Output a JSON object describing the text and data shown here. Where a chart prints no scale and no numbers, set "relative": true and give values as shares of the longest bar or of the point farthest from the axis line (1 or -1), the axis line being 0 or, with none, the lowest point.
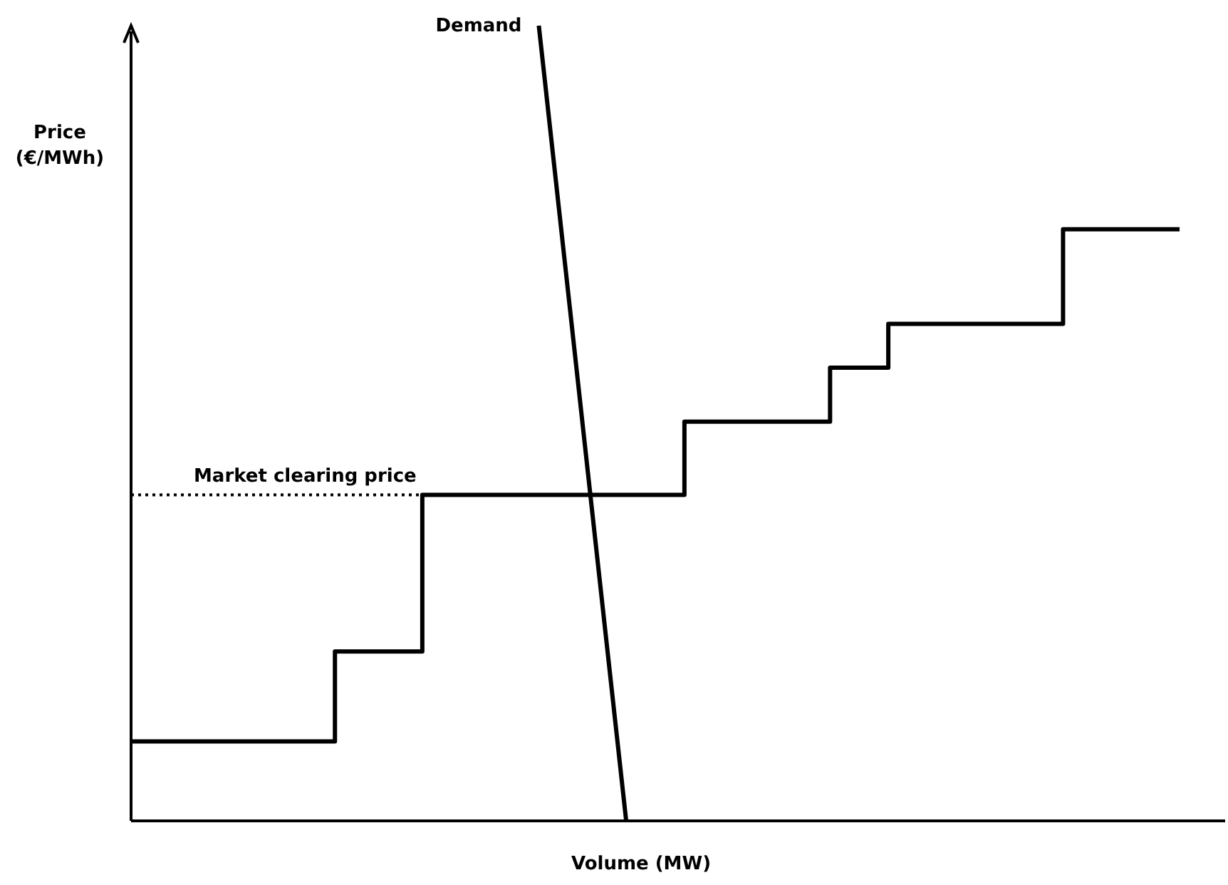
{
  "chart_data": {
    "type": "line",
    "relative": true,
    "xlabel": "Volume (MW)",
    "ylabel": "Price (€/MWh)",
    "marker": "none",
    "line_style": "solid",
    "categories": [
      null,
      null,
      null,
      null,
      null,
      null,
      null,
      null,
      null,
      null,
      null,
      null,
      null,
      null,
      null,
      null,
      null,
      null,
      null,
      null,
      null,
      null,
      null,
      null,
      null,
      null,
      null,
      null,
      null,
      null,
      null,
      null,
      null,
      null,
      null,
      null,
      null
    ],
    "series": [
      {
        "type": "step",
        "color": "#000000",
        "values": [
          0.1,
          0.1,
          0.1,
          0.1,
          0.1,
          0.1,
          0.1,
          0.213,
          0.213,
          0.213,
          0.41,
          0.41,
          0.41,
          0.41,
          0.41,
          0.41,
          0.41,
          0.41,
          0.41,
          0.502,
          0.502,
          0.502,
          0.502,
          0.502,
          0.57,
          0.57,
          0.625,
          0.625,
          0.625,
          0.625,
          0.625,
          0.625,
          0.744,
          0.744,
          0.744,
          0.744,
          0.744
        ]
      },
      {
        "name": "Demand",
        "color": "#000000",
        "values": [
          null,
          null,
          null,
          null,
          null,
          null,
          null,
          null,
          null,
          null,
          null,
          null,
          null,
          null,
          1,
          0.667,
          0.333,
          0,
          null,
          null,
          null,
          null,
          null,
          null,
          null,
          null,
          null,
          null,
          null,
          null,
          null,
          null,
          null,
          null,
          null,
          null,
          null
        ]
      }
    ],
    "ref_lines": [
      {
        "axis": "y",
        "value": 0.41,
        "label": "Market clearing price",
        "line_style": "dotted",
        "color": "#000000"
      }
    ]
  }
}
